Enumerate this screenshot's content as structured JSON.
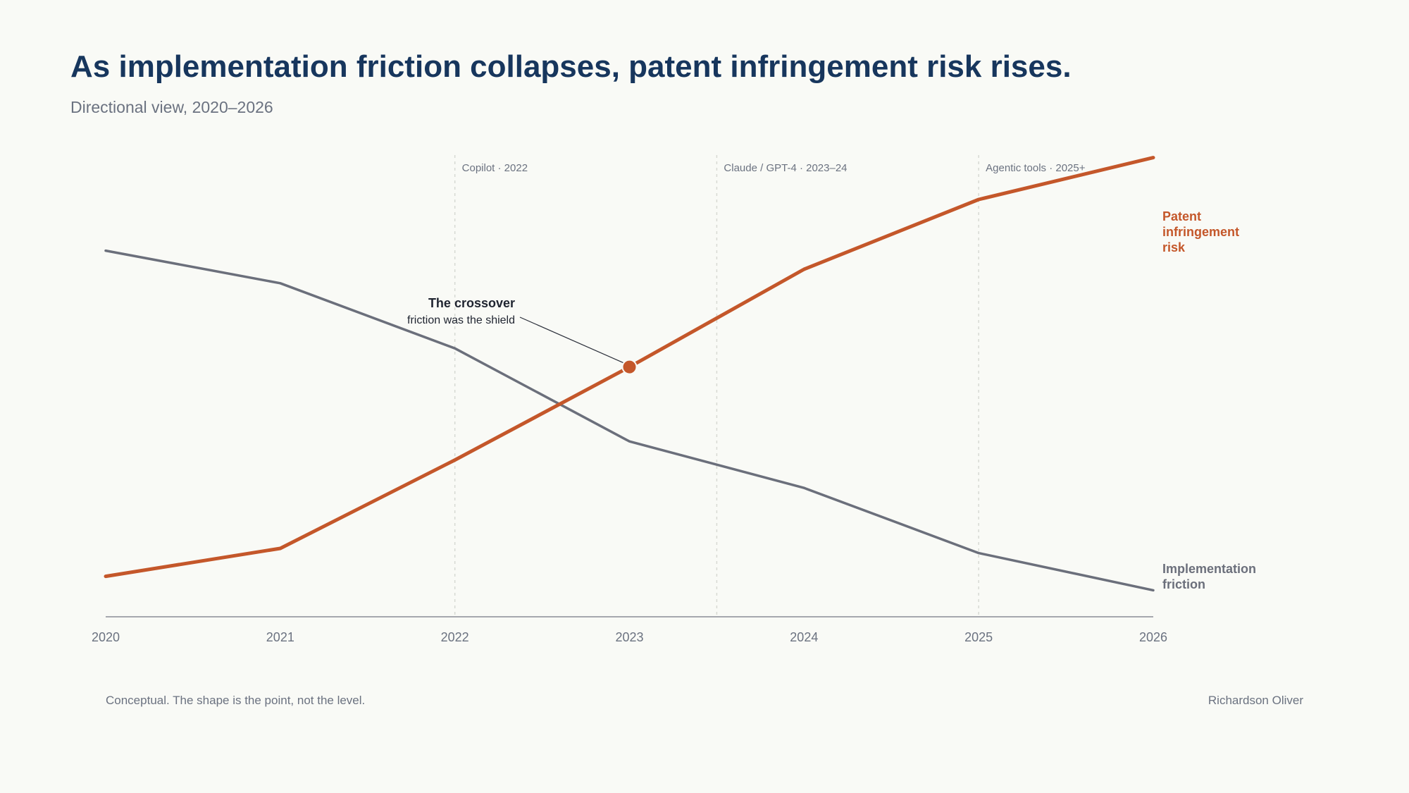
{
  "header": {
    "title": "As implementation friction collapses, patent infringement risk rises.",
    "subtitle": "Directional view, 2020–2026"
  },
  "footer": {
    "note": "Conceptual. The shape is the point, not the level.",
    "author": "Richardson Oliver"
  },
  "colors": {
    "friction": "#6b6f7b",
    "risk": "#c4572a",
    "title": "#17365d",
    "muted": "#6b7280",
    "gridline": "#d7d9d3"
  },
  "chart_data": {
    "type": "line",
    "x": [
      2020,
      2021,
      2022,
      2023,
      2024,
      2025,
      2026
    ],
    "xlim": [
      2020,
      2026
    ],
    "ylim": [
      0,
      100
    ],
    "grid": false,
    "legend": "direct-labels-right",
    "series": [
      {
        "name": "Implementation friction",
        "label_lines": [
          "Implementation",
          "friction"
        ],
        "color": "#6b6f7b",
        "values": [
          84,
          77,
          63,
          43,
          33,
          19,
          11
        ]
      },
      {
        "name": "Patent infringement risk",
        "label_lines": [
          "Patent",
          "infringement",
          "risk"
        ],
        "color": "#c4572a",
        "values": [
          14,
          20,
          39,
          59,
          80,
          95,
          104
        ]
      }
    ],
    "events": [
      {
        "x": 2022,
        "label": "Copilot · 2022"
      },
      {
        "x": 2023.5,
        "label": "Claude / GPT-4 · 2023–24"
      },
      {
        "x": 2025,
        "label": "Agentic tools · 2025+"
      }
    ],
    "annotation": {
      "x": 2023,
      "y": 59,
      "title": "The crossover",
      "text": "friction was the shield"
    }
  }
}
